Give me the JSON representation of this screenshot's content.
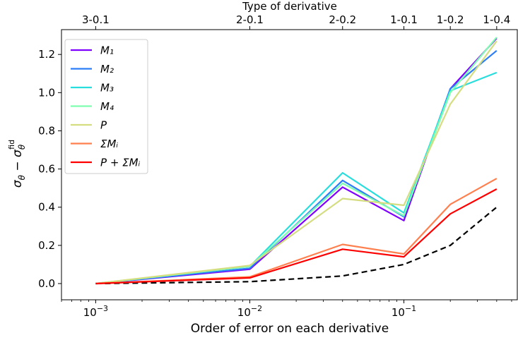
{
  "chart_data": {
    "type": "line",
    "x_scale": "log",
    "xlabel": "Order of error on each derivative",
    "ylabel": "σθ − σθfid",
    "top_axis_label": "Type of derivative",
    "xlim": [
      0.0006,
      0.55
    ],
    "ylim": [
      -0.085,
      1.33
    ],
    "grid": false,
    "legend_position": "top-left",
    "x_ticks": [
      {
        "value": 0.001,
        "label": "10−3"
      },
      {
        "value": 0.01,
        "label": "10−2"
      },
      {
        "value": 0.1,
        "label": "10−1"
      }
    ],
    "y_ticks": [
      {
        "value": 0.0,
        "label": "0.0"
      },
      {
        "value": 0.2,
        "label": "0.2"
      },
      {
        "value": 0.4,
        "label": "0.4"
      },
      {
        "value": 0.6,
        "label": "0.6"
      },
      {
        "value": 0.8,
        "label": "0.8"
      },
      {
        "value": 1.0,
        "label": "1.0"
      },
      {
        "value": 1.2,
        "label": "1.2"
      }
    ],
    "top_ticks": [
      {
        "value": 0.001,
        "label": "3-0.1"
      },
      {
        "value": 0.01,
        "label": "2-0.1"
      },
      {
        "value": 0.04,
        "label": "2-0.2"
      },
      {
        "value": 0.1,
        "label": "1-0.1"
      },
      {
        "value": 0.2,
        "label": "1-0.2"
      },
      {
        "value": 0.4,
        "label": "1-0.4"
      }
    ],
    "x": [
      0.001,
      0.01,
      0.04,
      0.1,
      0.2,
      0.4
    ],
    "series": [
      {
        "name": "M₁",
        "color": "#7f00ff",
        "values": [
          0.0,
          0.075,
          0.505,
          0.33,
          1.02,
          1.285
        ]
      },
      {
        "name": "M₂",
        "color": "#2c7ef7",
        "values": [
          0.0,
          0.08,
          0.54,
          0.35,
          1.02,
          1.22
        ]
      },
      {
        "name": "M₃",
        "color": "#2adddd",
        "values": [
          0.0,
          0.09,
          0.58,
          0.37,
          1.01,
          1.105
        ]
      },
      {
        "name": "M₄",
        "color": "#7ffeb0",
        "values": [
          0.0,
          0.09,
          0.525,
          0.355,
          1.0,
          1.29
        ]
      },
      {
        "name": "P",
        "color": "#d4dd80",
        "values": [
          0.0,
          0.095,
          0.445,
          0.41,
          0.94,
          1.27
        ]
      },
      {
        "name": "ΣMᵢ",
        "color": "#ff7f4e",
        "values": [
          0.0,
          0.035,
          0.205,
          0.155,
          0.415,
          0.55
        ]
      },
      {
        "name": "P + ΣMᵢ",
        "color": "#ff0000",
        "values": [
          0.0,
          0.03,
          0.18,
          0.14,
          0.365,
          0.495
        ]
      }
    ],
    "reference": {
      "style": "dashed",
      "color": "#000000",
      "values": [
        0.0,
        0.01,
        0.04,
        0.1,
        0.2,
        0.4
      ]
    }
  }
}
